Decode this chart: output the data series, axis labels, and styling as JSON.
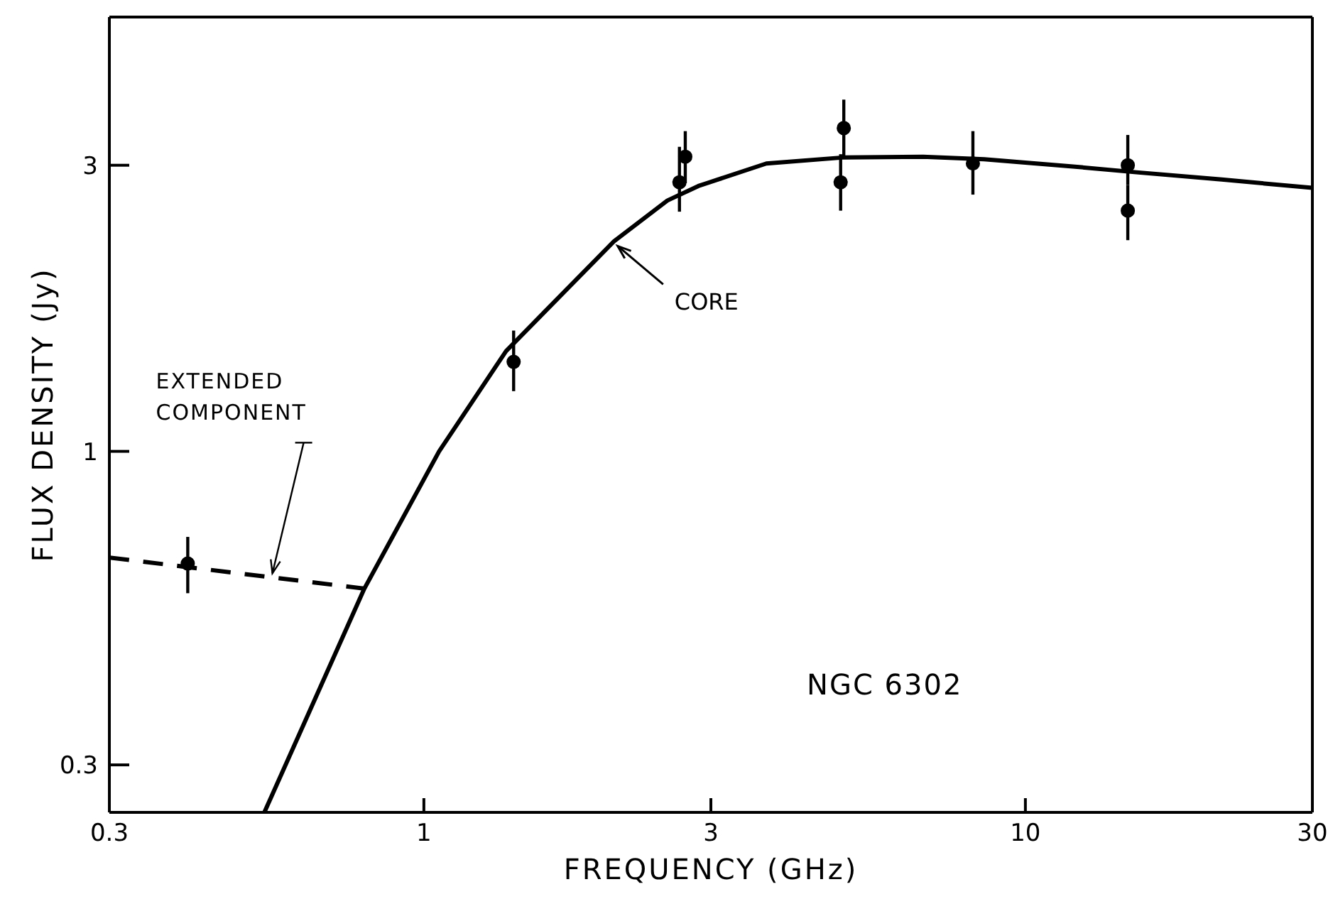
{
  "chart_data": {
    "type": "scatter",
    "xlabel": "FREQUENCY (GHz)",
    "ylabel": "FLUX DENSITY (Jy)",
    "log": "xy",
    "xlim": [
      0.3,
      30
    ],
    "xticks": [
      0.3,
      1,
      3,
      10,
      30
    ],
    "ylim": [
      0.25,
      5.3
    ],
    "yticks": [
      0.3,
      1,
      3
    ],
    "annotations": [
      {
        "text": "CORE",
        "x": 2.1,
        "y": 2.2
      },
      {
        "text": "EXTENDED\nCOMPONENT",
        "x": 0.56,
        "y": 0.626
      },
      "NGC 6302"
    ],
    "series": [
      {
        "type": "line",
        "color": "#000000",
        "line_style": "solid",
        "marker": "none",
        "x": [
          0.543,
          0.796,
          1.06,
          1.37,
          2.07,
          2.54,
          2.86,
          3.71,
          4.96,
          6.76,
          8.54,
          11.8,
          15.3,
          21.2,
          30
        ],
        "values": [
          0.25,
          0.59,
          1.0,
          1.47,
          2.24,
          2.62,
          2.77,
          3.02,
          3.09,
          3.1,
          3.07,
          2.99,
          2.92,
          2.84,
          2.75
        ]
      },
      {
        "type": "line",
        "color": "#000000",
        "line_style": "dashed",
        "marker": "none",
        "x": [
          0.3,
          0.8
        ],
        "values": [
          0.665,
          0.59
        ]
      },
      {
        "color": "#000000",
        "marker": "circle",
        "x": [
          0.405,
          1.41,
          2.66,
          2.72,
          4.93,
          4.99,
          8.18,
          14.8,
          14.8
        ],
        "values": [
          0.65,
          1.41,
          2.81,
          3.1,
          2.81,
          3.46,
          3.02,
          3.0,
          2.52
        ],
        "errors": [
          [
            0.58,
            0.72
          ],
          [
            1.26,
            1.59
          ],
          [
            2.51,
            3.22
          ],
          [
            2.8,
            3.42
          ],
          [
            2.52,
            3.13
          ],
          [
            3.1,
            3.86
          ],
          [
            2.68,
            3.42
          ],
          [
            2.78,
            3.37
          ],
          [
            2.25,
            2.78
          ]
        ]
      }
    ]
  }
}
